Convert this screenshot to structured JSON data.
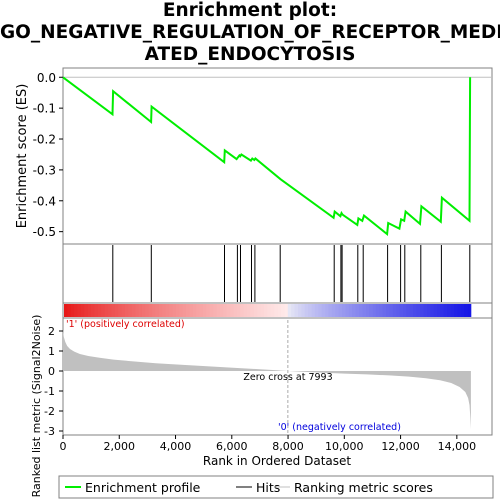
{
  "title_lines": [
    "Enrichment plot:",
    "GO_NEGATIVE_REGULATION_OF_RECEPTOR_MEDI",
    "ATED_ENDOCYTOSIS"
  ],
  "colors": {
    "enrichment_line": "#00ee00",
    "hit_line": "#000000",
    "metric_fill": "#c0c0c0",
    "zero_cross_line": "#aaaaaa",
    "pos_label": "#dd0000",
    "neg_label": "#0000dd"
  },
  "chart_data": [
    {
      "type": "line",
      "name": "enrichment-profile",
      "ylabel": "Enrichment score (ES)",
      "ylim": [
        -0.54,
        0.03
      ],
      "yticks": [
        {
          "v": 0.0,
          "label": "0.0"
        },
        {
          "v": -0.1,
          "label": "-0.1"
        },
        {
          "v": -0.2,
          "label": "-0.2"
        },
        {
          "v": -0.3,
          "label": "-0.3"
        },
        {
          "v": -0.4,
          "label": "-0.4"
        },
        {
          "v": -0.5,
          "label": "-0.5"
        }
      ],
      "x": [
        0,
        1760,
        1780,
        3130,
        3150,
        5730,
        5750,
        6170,
        6270,
        6300,
        6340,
        6680,
        6730,
        6800,
        6840,
        7730,
        9620,
        9660,
        9860,
        9900,
        9940,
        10460,
        10500,
        10640,
        10700,
        11520,
        11560,
        11960,
        12020,
        12130,
        12180,
        12690,
        12740,
        13430,
        13470,
        14450,
        14470
      ],
      "y": [
        0.0,
        -0.12,
        -0.045,
        -0.145,
        -0.095,
        -0.275,
        -0.237,
        -0.265,
        -0.253,
        -0.256,
        -0.25,
        -0.27,
        -0.263,
        -0.268,
        -0.263,
        -0.33,
        -0.455,
        -0.435,
        -0.45,
        -0.44,
        -0.445,
        -0.478,
        -0.457,
        -0.465,
        -0.448,
        -0.508,
        -0.472,
        -0.49,
        -0.46,
        -0.465,
        -0.435,
        -0.475,
        -0.418,
        -0.468,
        -0.39,
        -0.465,
        0.0
      ],
      "zero_line": 0.0
    },
    {
      "type": "hits",
      "name": "hits",
      "x": [
        1770,
        3140,
        5740,
        6200,
        6310,
        6700,
        6820,
        7720,
        9640,
        9880,
        9920,
        10480,
        10670,
        11540,
        12000,
        12150,
        12720,
        13450,
        14460
      ]
    },
    {
      "type": "area",
      "name": "ranking-metric-scores",
      "xlabel": "Rank in Ordered Dataset",
      "ylabel": "Ranked list metric (Signal2Noise)",
      "xlim": [
        0,
        15250
      ],
      "ylim": [
        -3.2,
        2.65
      ],
      "xticks": [
        {
          "v": 0,
          "label": "0"
        },
        {
          "v": 2000,
          "label": "2,000"
        },
        {
          "v": 4000,
          "label": "4,000"
        },
        {
          "v": 6000,
          "label": "6,000"
        },
        {
          "v": 8000,
          "label": "8,000"
        },
        {
          "v": 10000,
          "label": "10,000"
        },
        {
          "v": 12000,
          "label": "12,000"
        },
        {
          "v": 14000,
          "label": "14,000"
        }
      ],
      "yticks": [
        {
          "v": 2,
          "label": "2"
        },
        {
          "v": 1,
          "label": "1"
        },
        {
          "v": 0,
          "label": "0"
        },
        {
          "v": -1,
          "label": "-1"
        },
        {
          "v": -2,
          "label": "-2"
        },
        {
          "v": -3,
          "label": "-3"
        }
      ],
      "x": [
        0,
        30,
        80,
        150,
        250,
        400,
        600,
        900,
        1300,
        1800,
        2500,
        3300,
        4200,
        5200,
        6200,
        7000,
        7600,
        7993,
        8500,
        9200,
        10000,
        10800,
        11600,
        12300,
        12900,
        13400,
        13800,
        14100,
        14300,
        14400,
        14450,
        14480,
        14500
      ],
      "y": [
        2.05,
        1.7,
        1.45,
        1.25,
        1.1,
        0.97,
        0.85,
        0.75,
        0.66,
        0.57,
        0.48,
        0.39,
        0.31,
        0.23,
        0.15,
        0.09,
        0.04,
        0.0,
        -0.04,
        -0.08,
        -0.13,
        -0.17,
        -0.22,
        -0.28,
        -0.36,
        -0.46,
        -0.6,
        -0.8,
        -1.05,
        -1.35,
        -1.7,
        -2.3,
        -2.9
      ],
      "zero_cross": 7993,
      "zero_cross_label": "Zero cross at 7993",
      "pos_label": "'1' (positively correlated)",
      "neg_label": "'0' (negatively correlated)"
    }
  ],
  "legend": {
    "items": [
      {
        "key": "enrichment",
        "label": "Enrichment profile"
      },
      {
        "key": "hits",
        "label": "Hits"
      },
      {
        "key": "metric",
        "label": "Ranking metric scores"
      }
    ]
  }
}
